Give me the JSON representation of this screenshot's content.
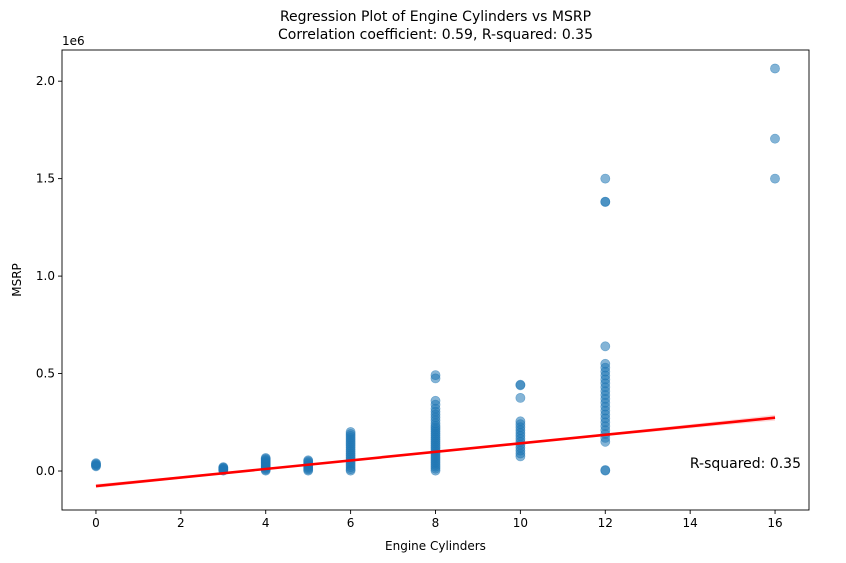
{
  "chart_data": {
    "type": "scatter",
    "title": "Regression Plot of Engine Cylinders vs MSRP",
    "subtitle": "Correlation coefficient: 0.59, R-squared: 0.35",
    "xlabel": "Engine Cylinders",
    "ylabel": "MSRP",
    "y_offset_label": "1e6",
    "xlim": [
      -0.8,
      16.8
    ],
    "ylim": [
      -200000,
      2160000
    ],
    "x_ticks": [
      0,
      2,
      4,
      6,
      8,
      10,
      12,
      14,
      16
    ],
    "y_ticks": [
      0,
      500000,
      1000000,
      1500000,
      2000000
    ],
    "y_tick_labels": [
      "0.0",
      "0.5",
      "1.0",
      "1.5",
      "2.0"
    ],
    "grid": false,
    "point_color": "#1f77b4",
    "point_alpha": 0.55,
    "line_color": "#ff0000",
    "annotation": "R-squared: 0.35",
    "regression": {
      "intercept": -77000,
      "slope": 21900
    },
    "series": [
      {
        "values": [
          [
            0,
            24000
          ],
          [
            0,
            28000
          ],
          [
            0,
            32000
          ],
          [
            0,
            36000
          ],
          [
            0,
            40000
          ],
          [
            3,
            2000
          ],
          [
            3,
            5000
          ],
          [
            3,
            8000
          ],
          [
            3,
            11000
          ],
          [
            3,
            14000
          ],
          [
            3,
            17000
          ],
          [
            3,
            20000
          ],
          [
            4,
            2000
          ],
          [
            4,
            7000
          ],
          [
            4,
            12000
          ],
          [
            4,
            17000
          ],
          [
            4,
            22000
          ],
          [
            4,
            27000
          ],
          [
            4,
            32000
          ],
          [
            4,
            37000
          ],
          [
            4,
            42000
          ],
          [
            4,
            47000
          ],
          [
            4,
            52000
          ],
          [
            4,
            57000
          ],
          [
            4,
            62000
          ],
          [
            4,
            67000
          ],
          [
            5,
            2000
          ],
          [
            5,
            8000
          ],
          [
            5,
            14000
          ],
          [
            5,
            20000
          ],
          [
            5,
            26000
          ],
          [
            5,
            32000
          ],
          [
            5,
            38000
          ],
          [
            5,
            44000
          ],
          [
            5,
            50000
          ],
          [
            5,
            55000
          ],
          [
            6,
            2000
          ],
          [
            6,
            10000
          ],
          [
            6,
            20000
          ],
          [
            6,
            30000
          ],
          [
            6,
            40000
          ],
          [
            6,
            50000
          ],
          [
            6,
            60000
          ],
          [
            6,
            70000
          ],
          [
            6,
            80000
          ],
          [
            6,
            90000
          ],
          [
            6,
            100000
          ],
          [
            6,
            110000
          ],
          [
            6,
            120000
          ],
          [
            6,
            130000
          ],
          [
            6,
            140000
          ],
          [
            6,
            150000
          ],
          [
            6,
            160000
          ],
          [
            6,
            170000
          ],
          [
            6,
            180000
          ],
          [
            6,
            190000
          ],
          [
            6,
            200000
          ],
          [
            8,
            2000
          ],
          [
            8,
            12000
          ],
          [
            8,
            22000
          ],
          [
            8,
            32000
          ],
          [
            8,
            42000
          ],
          [
            8,
            52000
          ],
          [
            8,
            62000
          ],
          [
            8,
            72000
          ],
          [
            8,
            82000
          ],
          [
            8,
            92000
          ],
          [
            8,
            102000
          ],
          [
            8,
            112000
          ],
          [
            8,
            122000
          ],
          [
            8,
            132000
          ],
          [
            8,
            142000
          ],
          [
            8,
            152000
          ],
          [
            8,
            162000
          ],
          [
            8,
            172000
          ],
          [
            8,
            182000
          ],
          [
            8,
            192000
          ],
          [
            8,
            202000
          ],
          [
            8,
            212000
          ],
          [
            8,
            222000
          ],
          [
            8,
            232000
          ],
          [
            8,
            245000
          ],
          [
            8,
            260000
          ],
          [
            8,
            275000
          ],
          [
            8,
            290000
          ],
          [
            8,
            305000
          ],
          [
            8,
            320000
          ],
          [
            8,
            340000
          ],
          [
            8,
            360000
          ],
          [
            8,
            475000
          ],
          [
            8,
            492000
          ],
          [
            10,
            75000
          ],
          [
            10,
            90000
          ],
          [
            10,
            105000
          ],
          [
            10,
            120000
          ],
          [
            10,
            135000
          ],
          [
            10,
            150000
          ],
          [
            10,
            165000
          ],
          [
            10,
            180000
          ],
          [
            10,
            195000
          ],
          [
            10,
            210000
          ],
          [
            10,
            225000
          ],
          [
            10,
            240000
          ],
          [
            10,
            255000
          ],
          [
            10,
            375000
          ],
          [
            10,
            440000
          ],
          [
            10,
            443000
          ],
          [
            12,
            2000
          ],
          [
            12,
            5000
          ],
          [
            12,
            150000
          ],
          [
            12,
            170000
          ],
          [
            12,
            190000
          ],
          [
            12,
            210000
          ],
          [
            12,
            230000
          ],
          [
            12,
            250000
          ],
          [
            12,
            270000
          ],
          [
            12,
            290000
          ],
          [
            12,
            310000
          ],
          [
            12,
            330000
          ],
          [
            12,
            350000
          ],
          [
            12,
            370000
          ],
          [
            12,
            390000
          ],
          [
            12,
            410000
          ],
          [
            12,
            430000
          ],
          [
            12,
            450000
          ],
          [
            12,
            470000
          ],
          [
            12,
            490000
          ],
          [
            12,
            510000
          ],
          [
            12,
            530000
          ],
          [
            12,
            550000
          ],
          [
            12,
            640000
          ],
          [
            12,
            1380000
          ],
          [
            12,
            1382000
          ],
          [
            12,
            1500000
          ],
          [
            16,
            1500000
          ],
          [
            16,
            1705000
          ],
          [
            16,
            2065000
          ]
        ]
      }
    ]
  }
}
